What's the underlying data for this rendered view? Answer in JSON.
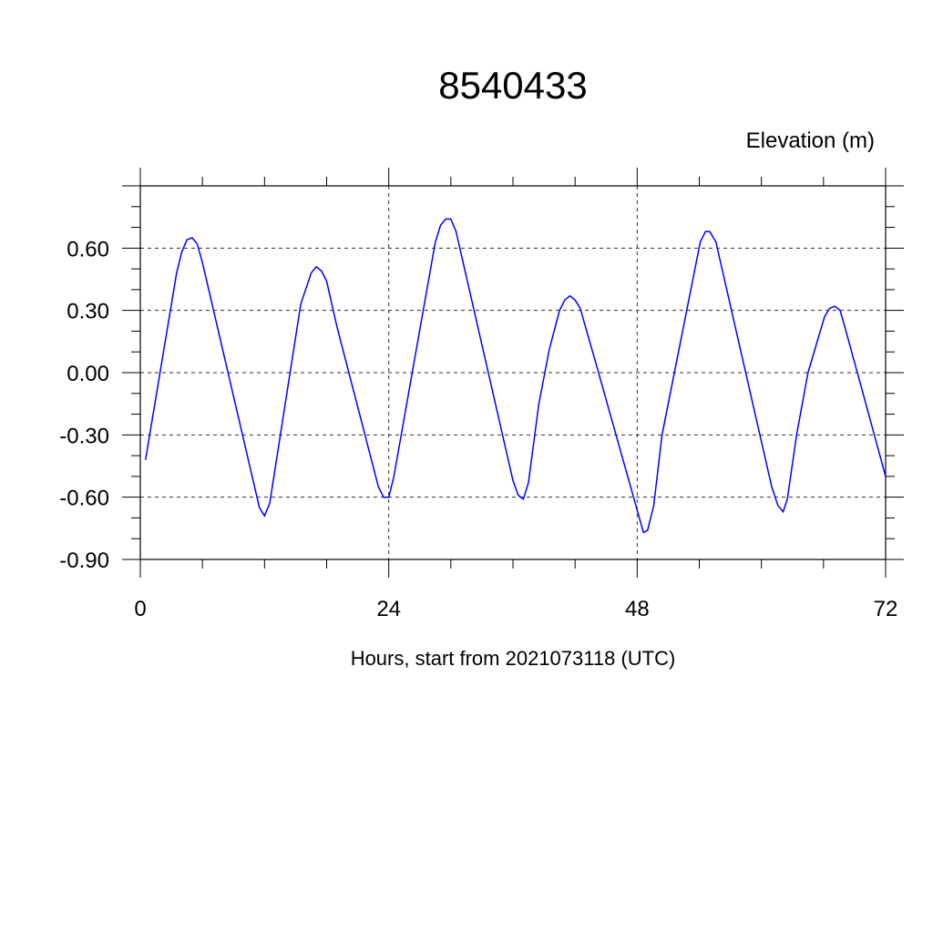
{
  "chart_data": {
    "type": "line",
    "title": "8540433",
    "ylabel": "Elevation (m)",
    "xlabel": "Hours, start from 2021073118 (UTC)",
    "xlim": [
      0,
      72
    ],
    "ylim": [
      -0.9,
      0.9
    ],
    "xticks": [
      0,
      24,
      48,
      72
    ],
    "xtick_labels": [
      "0",
      "24",
      "48",
      "72"
    ],
    "yticks": [
      -0.9,
      -0.6,
      -0.3,
      0.0,
      0.3,
      0.6
    ],
    "ytick_labels": [
      "-0.90",
      "-0.60",
      "-0.30",
      "0.00",
      "0.30",
      "0.60"
    ],
    "grid": true,
    "line_color": "#0000ff",
    "series": [
      {
        "points": [
          [
            0.5,
            -0.42
          ],
          [
            3.5,
            0.48
          ],
          [
            4.0,
            0.58
          ],
          [
            4.5,
            0.64
          ],
          [
            5.0,
            0.65
          ],
          [
            5.5,
            0.62
          ],
          [
            6.0,
            0.53
          ],
          [
            11.5,
            -0.65
          ],
          [
            12.0,
            -0.69
          ],
          [
            12.5,
            -0.63
          ],
          [
            15.5,
            0.33
          ],
          [
            16.5,
            0.48
          ],
          [
            17.0,
            0.51
          ],
          [
            17.5,
            0.49
          ],
          [
            18.0,
            0.44
          ],
          [
            19.0,
            0.22
          ],
          [
            23.0,
            -0.55
          ],
          [
            23.5,
            -0.6
          ],
          [
            24.0,
            -0.6
          ],
          [
            24.5,
            -0.5
          ],
          [
            28.5,
            0.63
          ],
          [
            29.0,
            0.71
          ],
          [
            29.5,
            0.74
          ],
          [
            30.0,
            0.74
          ],
          [
            30.5,
            0.68
          ],
          [
            36.0,
            -0.52
          ],
          [
            36.5,
            -0.59
          ],
          [
            37.0,
            -0.61
          ],
          [
            37.5,
            -0.53
          ],
          [
            38.5,
            -0.15
          ],
          [
            39.5,
            0.11
          ],
          [
            40.5,
            0.3
          ],
          [
            41.0,
            0.35
          ],
          [
            41.5,
            0.37
          ],
          [
            42.0,
            0.35
          ],
          [
            42.5,
            0.31
          ],
          [
            44.1,
            0.03
          ],
          [
            48.6,
            -0.77
          ],
          [
            49.0,
            -0.76
          ],
          [
            49.6,
            -0.64
          ],
          [
            50.4,
            -0.3
          ],
          [
            54.1,
            0.63
          ],
          [
            54.6,
            0.68
          ],
          [
            55.0,
            0.68
          ],
          [
            55.6,
            0.63
          ],
          [
            61.0,
            -0.55
          ],
          [
            61.6,
            -0.64
          ],
          [
            62.1,
            -0.67
          ],
          [
            62.5,
            -0.61
          ],
          [
            63.4,
            -0.3
          ],
          [
            64.5,
            0.0
          ],
          [
            66.1,
            0.27
          ],
          [
            66.6,
            0.31
          ],
          [
            67.1,
            0.32
          ],
          [
            67.6,
            0.3
          ],
          [
            68.0,
            0.23
          ],
          [
            69.6,
            -0.06
          ],
          [
            72.0,
            -0.5
          ]
        ]
      }
    ]
  }
}
